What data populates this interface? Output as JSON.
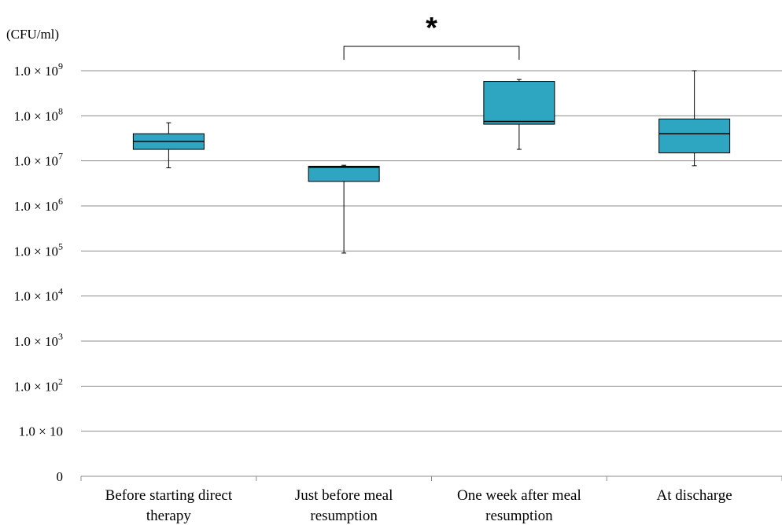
{
  "chart_data": {
    "type": "box",
    "ylabel": "(CFU/ml)",
    "y_scale": "log",
    "ylim": [
      0,
      1000000000
    ],
    "y_ticks": [
      {
        "label": "0",
        "base": "",
        "exp": ""
      },
      {
        "label": "1.0 × 10",
        "base": "1.0 × 10",
        "exp": ""
      },
      {
        "label": "1.0 × 10^2",
        "base": "1.0 × 10",
        "exp": "2"
      },
      {
        "label": "1.0 × 10^3",
        "base": "1.0 × 10",
        "exp": "3"
      },
      {
        "label": "1.0 × 10^4",
        "base": "1.0 × 10",
        "exp": "4"
      },
      {
        "label": "1.0 × 10^5",
        "base": "1.0 × 10",
        "exp": "5"
      },
      {
        "label": "1.0 × 10^6",
        "base": "1.0 × 10",
        "exp": "6"
      },
      {
        "label": "1.0 × 10^7",
        "base": "1.0 × 10",
        "exp": "7"
      },
      {
        "label": "1.0 × 10^8",
        "base": "1.0 × 10",
        "exp": "8"
      },
      {
        "label": "1.0 × 10^9",
        "base": "1.0 × 10",
        "exp": "9"
      }
    ],
    "categories": [
      [
        "Before starting direct",
        "therapy"
      ],
      [
        "Just before meal",
        "resumption"
      ],
      [
        "One week after meal",
        "resumption"
      ],
      [
        "At discharge"
      ]
    ],
    "boxes": [
      {
        "min": 7000000,
        "q1": 18000000,
        "median": 27000000,
        "q3": 40000000,
        "max": 70000000
      },
      {
        "min": 90000,
        "q1": 3500000,
        "median": 7200000,
        "q3": 7600000,
        "max": 8000000
      },
      {
        "min": 18000000,
        "q1": 65000000,
        "median": 75000000,
        "q3": 580000000,
        "max": 640000000
      },
      {
        "min": 7800000,
        "q1": 15000000,
        "median": 40000000,
        "q3": 85000000,
        "max": 1000000000
      }
    ],
    "significance": {
      "from": 1,
      "to": 2,
      "label": "*"
    },
    "box_color": "#2ea5c1",
    "grid": true
  }
}
